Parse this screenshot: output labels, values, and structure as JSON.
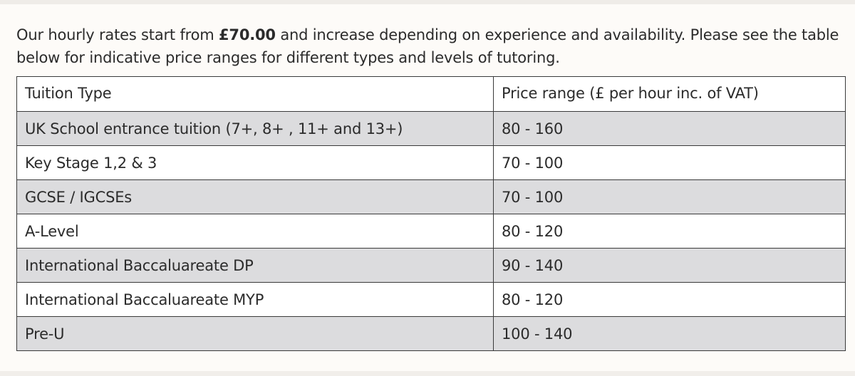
{
  "intro": {
    "prefix": "Our hourly rates start from ",
    "rate": "£70.00",
    "suffix": " and increase depending on experience and availability. Please see the table below for indicative price ranges for different types and levels of tutoring."
  },
  "table": {
    "headers": {
      "type": "Tuition Type",
      "price": "Price range (£ per hour inc. of VAT)"
    },
    "rows": [
      {
        "type": "UK School entrance tuition (7+, 8+ , 11+ and 13+)",
        "price": "80 - 160"
      },
      {
        "type": "Key Stage 1,2 & 3",
        "price": "70 - 100"
      },
      {
        "type": "GCSE / IGCSEs",
        "price": "70 - 100"
      },
      {
        "type": "A-Level",
        "price": "80 - 120"
      },
      {
        "type": "International Baccaluareate DP",
        "price": "90 - 140"
      },
      {
        "type": "International Baccaluareate MYP",
        "price": "80 - 120"
      },
      {
        "type": "Pre-U",
        "price": "100 - 140"
      }
    ]
  }
}
